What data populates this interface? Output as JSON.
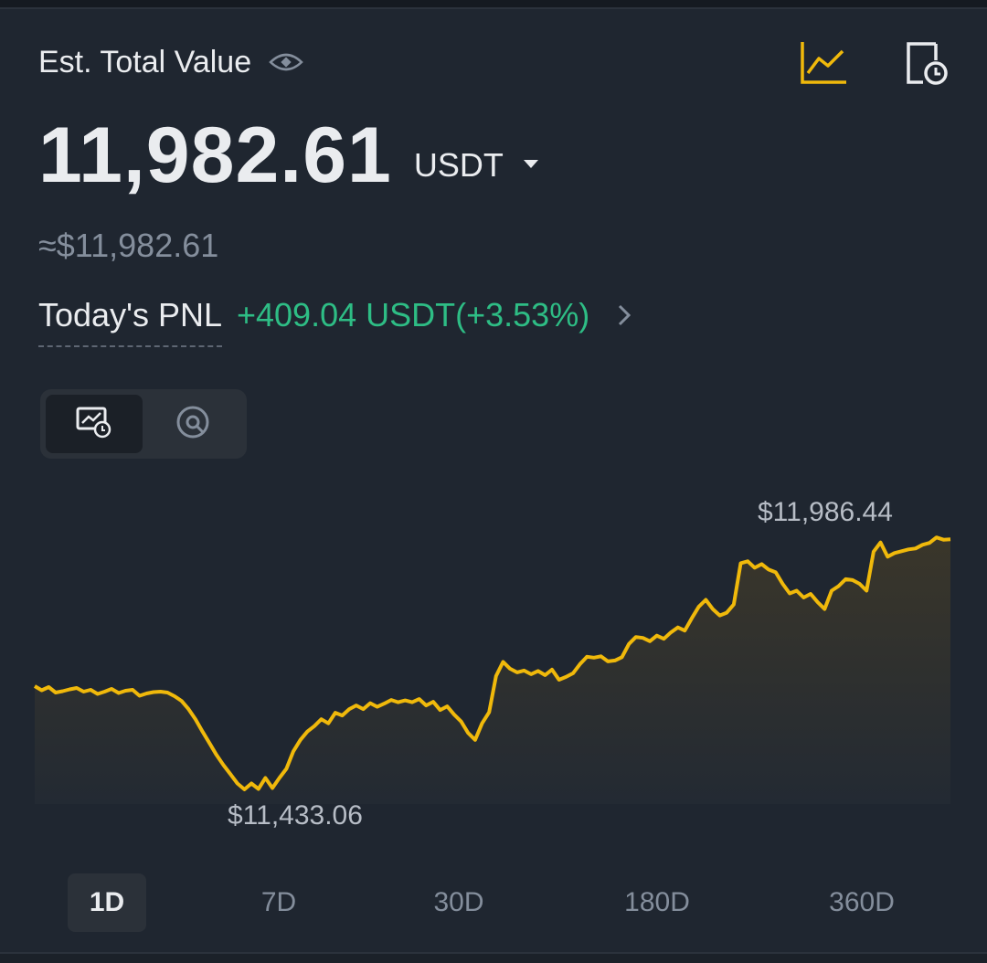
{
  "header": {
    "title": "Est. Total Value",
    "eye_icon": "eye-icon",
    "chart_icon": "line-chart-icon",
    "history_icon": "document-clock-icon",
    "accent_color": "#f0b90b"
  },
  "balance": {
    "value": "11,982.61",
    "currency": "USDT",
    "approx": "≈$11,982.61"
  },
  "pnl": {
    "label": "Today's PNL",
    "value": "+409.04 USDT(+3.53%)",
    "color": "#2ebd85"
  },
  "view_toggle": {
    "options": [
      "chart-clock-icon",
      "pie-chart-icon"
    ],
    "selected": 0
  },
  "chart": {
    "high_label": "$11,986.44",
    "low_label": "$11,433.06",
    "line_color": "#f0b90b"
  },
  "chart_data": {
    "type": "line",
    "series": [
      {
        "values": [
          11662,
          11653,
          11660,
          11648,
          11651,
          11655,
          11658,
          11650,
          11654,
          11645,
          11650,
          11656,
          11647,
          11652,
          11654,
          11641,
          11646,
          11649,
          11650,
          11648,
          11640,
          11630,
          11612,
          11590,
          11563,
          11538,
          11512,
          11490,
          11470,
          11450,
          11437,
          11450,
          11438,
          11462,
          11440,
          11462,
          11482,
          11520,
          11545,
          11563,
          11575,
          11590,
          11581,
          11604,
          11598,
          11612,
          11620,
          11612,
          11625,
          11617,
          11624,
          11632,
          11627,
          11631,
          11627,
          11634,
          11620,
          11628,
          11610,
          11618,
          11600,
          11585,
          11560,
          11545,
          11581,
          11605,
          11684,
          11715,
          11700,
          11692,
          11696,
          11688,
          11695,
          11686,
          11698,
          11676,
          11682,
          11690,
          11710,
          11726,
          11724,
          11727,
          11716,
          11718,
          11725,
          11754,
          11769,
          11767,
          11760,
          11772,
          11765,
          11779,
          11790,
          11783,
          11810,
          11835,
          11850,
          11830,
          11816,
          11822,
          11840,
          11930,
          11934,
          11920,
          11928,
          11916,
          11910,
          11885,
          11864,
          11870,
          11855,
          11863,
          11845,
          11830,
          11870,
          11880,
          11895,
          11893,
          11885,
          11870,
          11955,
          11975,
          11944,
          11952,
          11956,
          11960,
          11962,
          11970,
          11974,
          11986,
          11981,
          11982
        ]
      }
    ],
    "high": 11986.44,
    "low": 11433.06,
    "grid": false,
    "legend": false
  },
  "periods": {
    "items": [
      "1D",
      "7D",
      "30D",
      "180D",
      "360D"
    ],
    "selected": 0
  }
}
